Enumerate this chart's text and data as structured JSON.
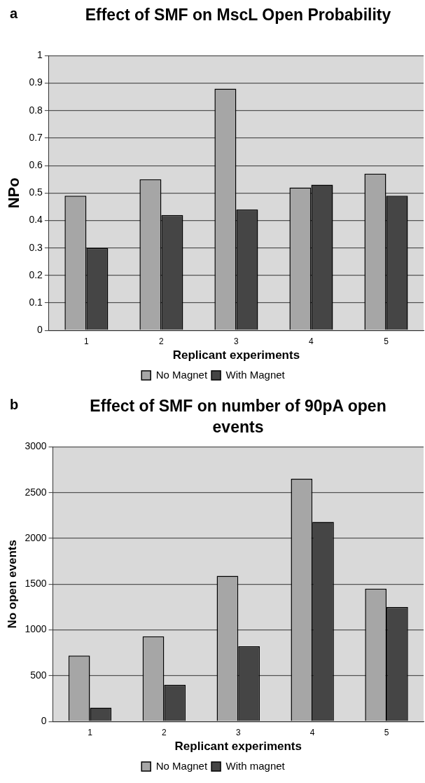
{
  "chart_data": [
    {
      "type": "bar",
      "title": "Effect of SMF on MscL Open Probability",
      "xlabel": "Replicant experiments",
      "ylabel": "NPo",
      "annotations": [
        "a"
      ],
      "categories": [
        "1",
        "2",
        "3",
        "4",
        "5"
      ],
      "series": [
        {
          "name": "No Magnet",
          "color": "#a6a6a6",
          "values": [
            0.49,
            0.55,
            0.88,
            0.52,
            0.57
          ]
        },
        {
          "name": "With Magnet",
          "color": "#454545",
          "values": [
            0.3,
            0.42,
            0.44,
            0.53,
            0.49
          ]
        }
      ],
      "ylim": [
        0,
        1
      ],
      "yticks": [
        0,
        0.1,
        0.2,
        0.3,
        0.4,
        0.5,
        0.6,
        0.7,
        0.8,
        0.9,
        1
      ],
      "grid": "y",
      "legend": "bottom"
    },
    {
      "type": "bar",
      "title": "Effect of SMF on number of 90pA open events",
      "xlabel": "Replicant experiments",
      "ylabel": "No open events",
      "annotations": [
        "b"
      ],
      "categories": [
        "1",
        "2",
        "3",
        "4",
        "5"
      ],
      "series": [
        {
          "name": "No Magnet",
          "color": "#a6a6a6",
          "values": [
            720,
            930,
            1590,
            2650,
            1450
          ]
        },
        {
          "name": "With magnet",
          "color": "#454545",
          "values": [
            150,
            400,
            820,
            2180,
            1250
          ]
        }
      ],
      "ylim": [
        0,
        3000
      ],
      "yticks": [
        0,
        500,
        1000,
        1500,
        2000,
        2500,
        3000
      ],
      "grid": "y",
      "legend": "bottom"
    }
  ]
}
